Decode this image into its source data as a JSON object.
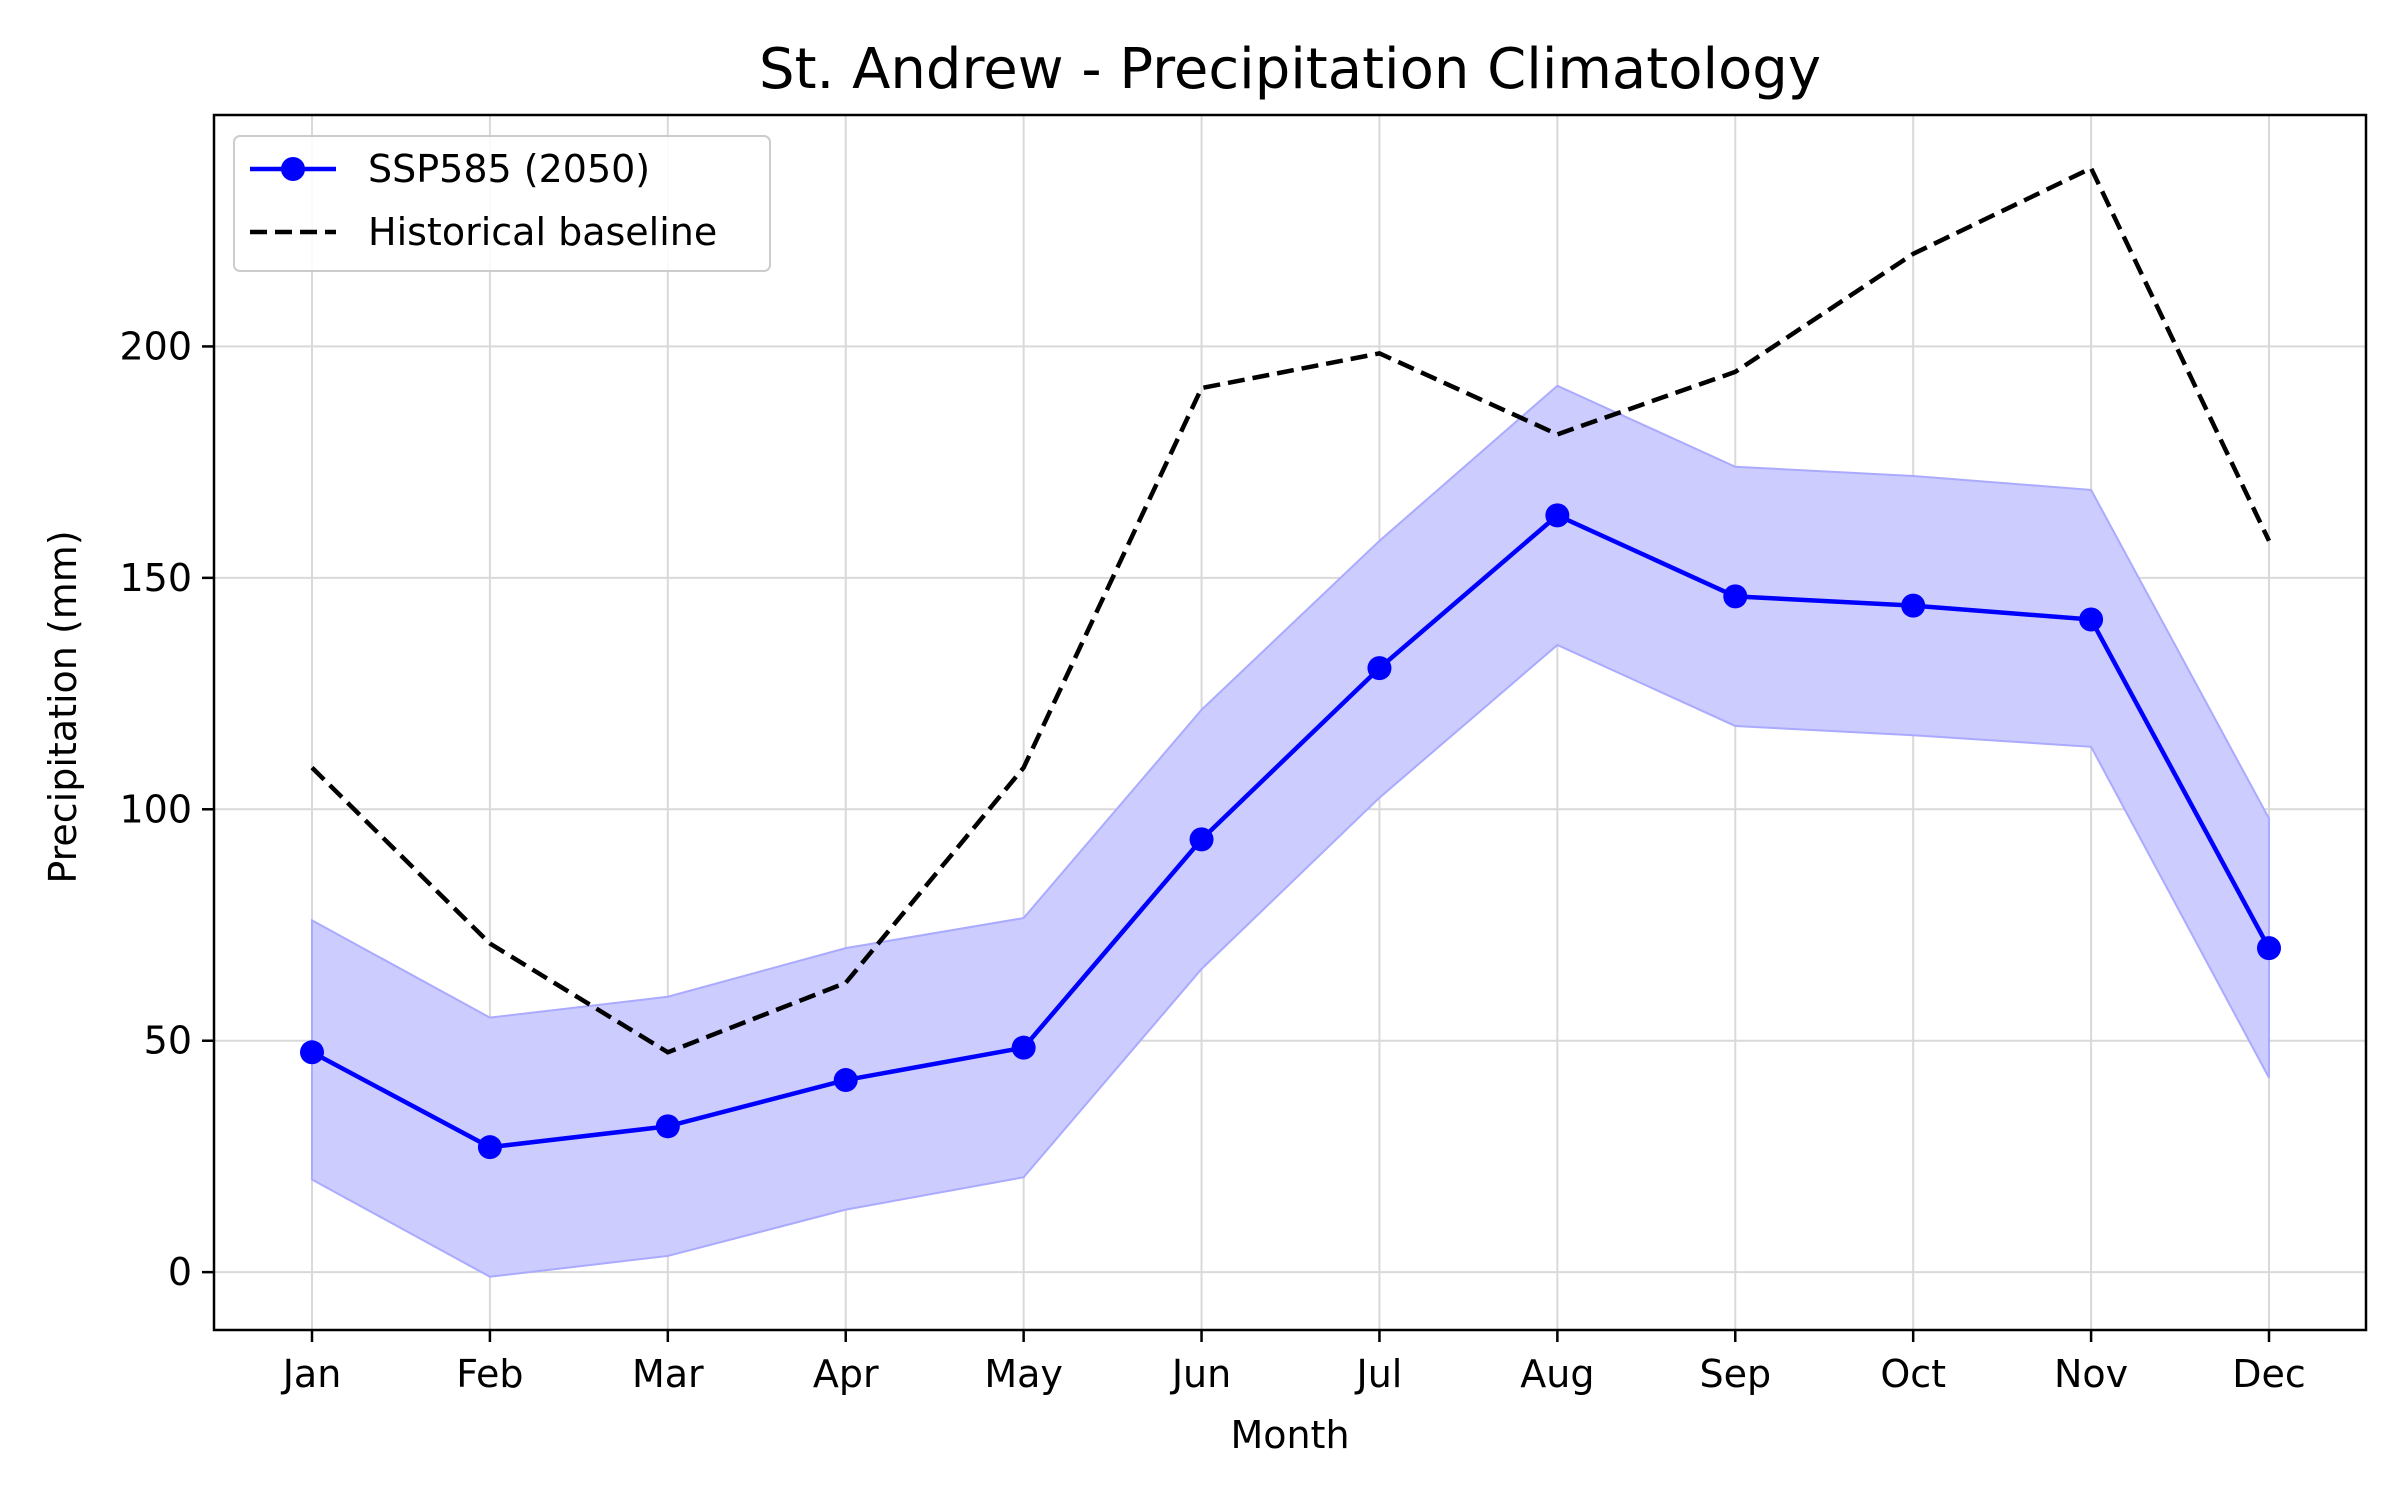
{
  "chart_data": {
    "type": "line",
    "title": "St. Andrew - Precipitation Climatology",
    "xlabel": "Month",
    "ylabel": "Precipitation (mm)",
    "categories": [
      "Jan",
      "Feb",
      "Mar",
      "Apr",
      "May",
      "Jun",
      "Jul",
      "Aug",
      "Sep",
      "Oct",
      "Nov",
      "Dec"
    ],
    "ylim": [
      -12.5,
      250
    ],
    "yticks": [
      0,
      50,
      100,
      150,
      200
    ],
    "ytick_labels": [
      "0",
      "50",
      "100",
      "150",
      "200"
    ],
    "grid": true,
    "legend_position": "top-left",
    "series": [
      {
        "name": "SSP585 (2050)",
        "style": "solid-line-with-markers",
        "color": "#0000ff",
        "values": [
          47.5,
          27,
          31.5,
          41.5,
          48.5,
          93.5,
          130.5,
          163.5,
          146,
          144,
          141,
          70
        ]
      },
      {
        "name": "Historical baseline",
        "style": "dashed-line",
        "color": "#000000",
        "values": [
          109,
          71,
          47.5,
          62.5,
          109,
          191,
          198.5,
          181,
          194.5,
          220,
          238.5,
          158
        ]
      }
    ],
    "band": {
      "color": "#ccccff",
      "edge_color": "#aaaaff",
      "lower": [
        20,
        -1,
        3.5,
        13.5,
        20.5,
        65.5,
        102.5,
        135.5,
        118,
        116,
        113.5,
        42
      ],
      "upper": [
        76,
        55,
        59.5,
        70,
        76.5,
        121.5,
        158,
        191.5,
        174,
        172,
        169,
        98
      ]
    }
  }
}
